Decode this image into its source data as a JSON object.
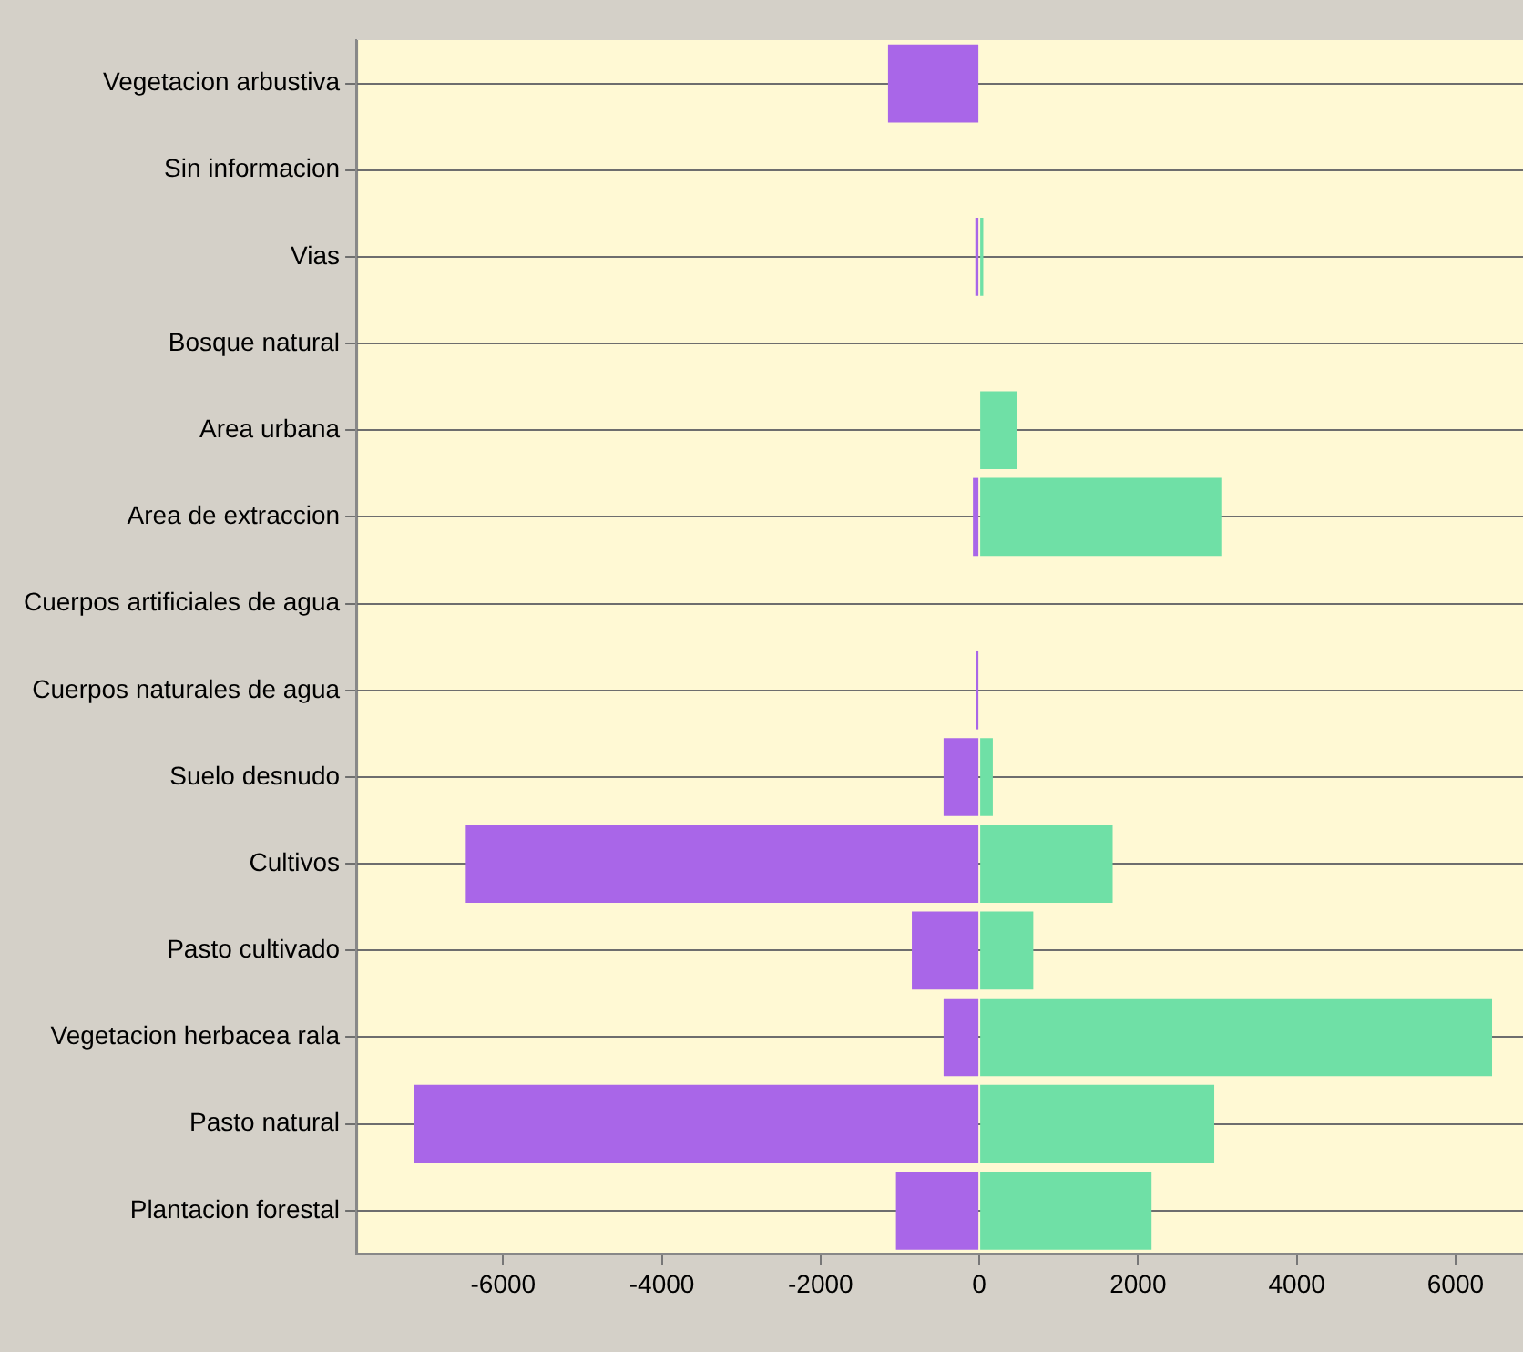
{
  "chart_data": {
    "type": "bar",
    "orientation": "horizontal",
    "stacked": true,
    "grid": "y",
    "legend": false,
    "categories": [
      "Vegetacion arbustiva",
      "Sin informacion",
      "Vias",
      "Bosque natural",
      "Area urbana",
      "Area de extraccion",
      "Cuerpos artificiales de agua",
      "Cuerpos naturales de agua",
      "Suelo desnudo",
      "Cultivos",
      "Pasto cultivado",
      "Vegetacion herbacea rala",
      "Pasto natural",
      "Plantacion forestal"
    ],
    "series": [
      {
        "color": "#a966e8",
        "values": [
          -1150,
          0,
          -50,
          0,
          0,
          -80,
          0,
          -40,
          -450,
          -6470,
          -850,
          -450,
          -7120,
          -1050
        ]
      },
      {
        "color": "#6fe0a6",
        "values": [
          0,
          0,
          50,
          0,
          480,
          3060,
          0,
          0,
          170,
          1680,
          680,
          6460,
          2960,
          2170
        ]
      }
    ],
    "xlim": [
      -7850,
      6850
    ],
    "xticks": [
      -6000,
      -4000,
      -2000,
      0,
      2000,
      4000,
      6000
    ]
  }
}
